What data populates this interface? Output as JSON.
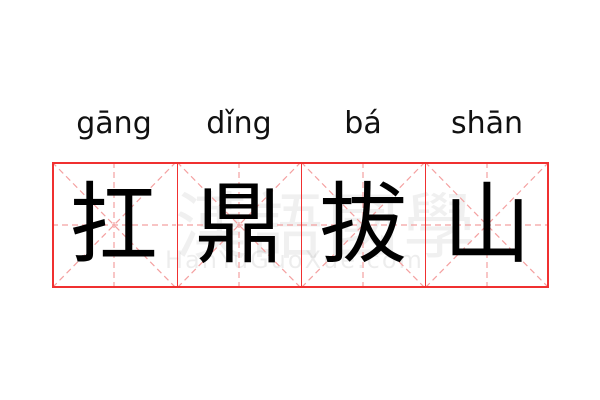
{
  "idiom": [
    {
      "pinyin": "gāng",
      "char": "扛"
    },
    {
      "pinyin": "dǐng",
      "char": "鼎"
    },
    {
      "pinyin": "bá",
      "char": "拔"
    },
    {
      "pinyin": "shān",
      "char": "山"
    }
  ],
  "watermark": {
    "chars": "漢語國學",
    "latin": "HanYuGuoXue.com"
  },
  "colors": {
    "grid_border": "#f03030",
    "guide_lines": "#f4a0a0",
    "text": "#000000"
  }
}
